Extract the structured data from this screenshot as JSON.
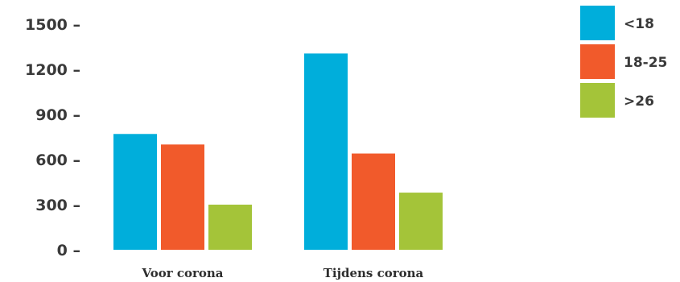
{
  "chart_data": {
    "type": "bar",
    "categories": [
      "Voor corona",
      "Tijdens corona"
    ],
    "series": [
      {
        "name": "<18",
        "color": "#00aedb",
        "values": [
          770,
          1305
        ]
      },
      {
        "name": "18-25",
        "color": "#f15a2b",
        "values": [
          700,
          640
        ]
      },
      {
        "name": ">26",
        "color": "#a4c439",
        "values": [
          300,
          380
        ]
      }
    ],
    "ylim": [
      0,
      1500
    ],
    "y_ticks": [
      0,
      300,
      600,
      900,
      1200,
      1500
    ],
    "tick_mark": "–",
    "grid": false,
    "legend_position": "top-right"
  }
}
